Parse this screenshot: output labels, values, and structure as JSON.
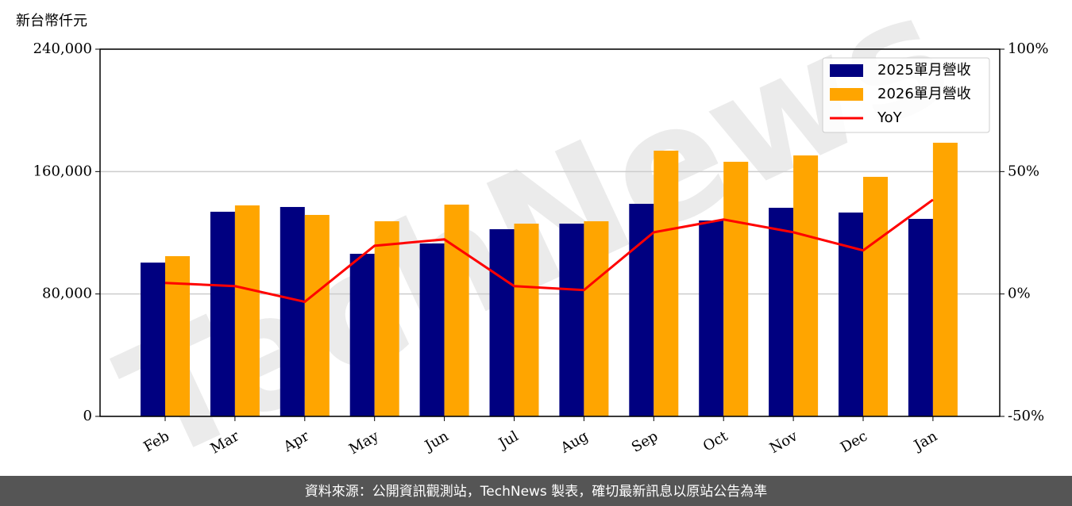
{
  "chart_data": {
    "type": "bar_line",
    "y_unit_label": "新台幣仟元",
    "watermark": "TechNews",
    "footer": "資料來源：公開資訊觀測站，TechNews 製表，確切最新訊息以原站公告為準",
    "categories": [
      "Feb",
      "Mar",
      "Apr",
      "May",
      "Jun",
      "Jul",
      "Aug",
      "Sep",
      "Oct",
      "Nov",
      "Dec",
      "Jan"
    ],
    "series": [
      {
        "name": "2025單月營收",
        "color": "#000080",
        "kind": "bar",
        "values": [
          100500,
          133750,
          136860,
          106270,
          113010,
          122340,
          125970,
          138930,
          128040,
          136340,
          133230,
          129080
        ]
      },
      {
        "name": "2026單月營收",
        "color": "#ffa500",
        "kind": "bar",
        "values": [
          104720,
          137890,
          131670,
          127530,
          138410,
          125970,
          127530,
          173660,
          166410,
          170550,
          156560,
          178850
        ]
      },
      {
        "name": "YoY",
        "color": "#ff0000",
        "kind": "line",
        "axis": "y2",
        "values": [
          4.5,
          3.2,
          -3.2,
          19.7,
          22.3,
          3.2,
          1.6,
          25.2,
          30.4,
          25.2,
          17.8,
          38.5
        ]
      }
    ],
    "ylim": [
      0,
      240000
    ],
    "yticks": [
      0,
      {
        "value": 80000,
        "label": "80,000"
      },
      {
        "value": 160000,
        "label": "160,000"
      },
      {
        "value": 240000,
        "label": "240,000"
      }
    ],
    "y2lim": [
      -50,
      100
    ],
    "y2ticks": [
      {
        "value": -50,
        "label": "-50%"
      },
      {
        "value": 0,
        "label": "0%"
      },
      {
        "value": 50,
        "label": "50%"
      },
      {
        "value": 100,
        "label": "100%"
      }
    ],
    "grid": true,
    "legend": "upper right"
  }
}
